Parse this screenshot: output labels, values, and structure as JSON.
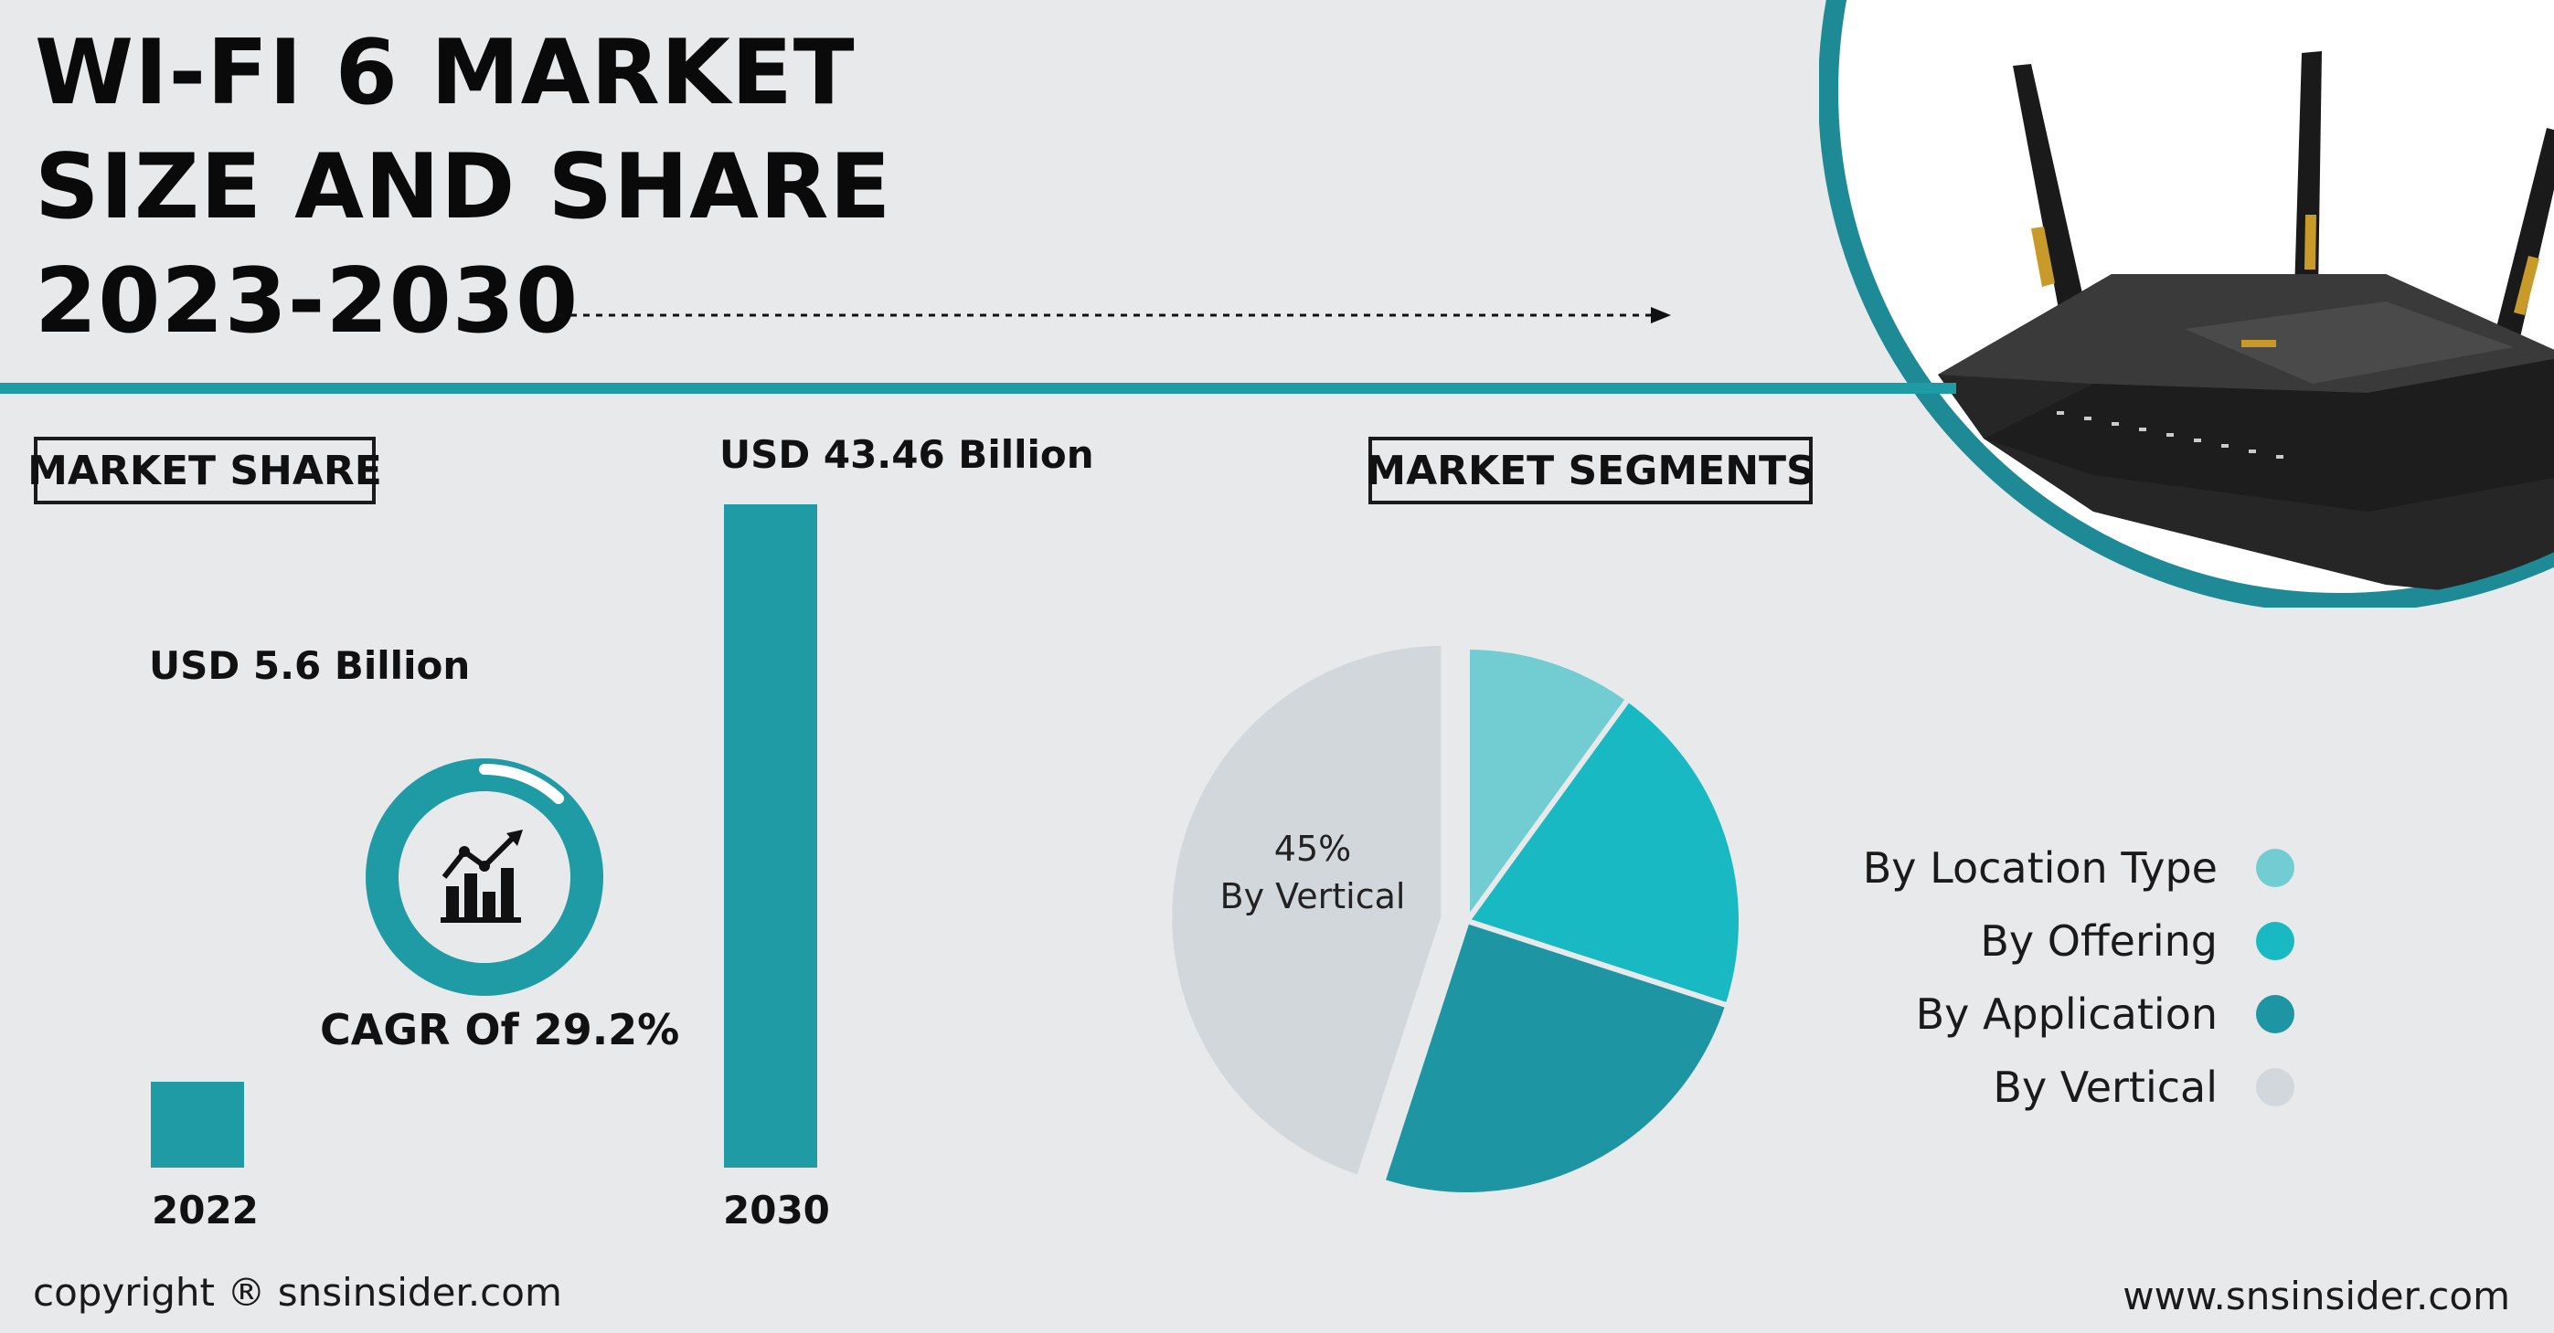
{
  "header": {
    "title_lines": [
      "WI-FI 6 MARKET",
      "SIZE AND SHARE",
      "2023-2030"
    ]
  },
  "sections": {
    "market_share_label": "MARKET SHARE",
    "market_segments_label": "MARKET SEGMENTS"
  },
  "cagr": {
    "text": "CAGR Of 29.2%"
  },
  "footer": {
    "copyright": "copyright ® snsinsider.com",
    "website": "www.snsinsider.com"
  },
  "colors": {
    "accent": "#1e9ba5",
    "background": "#e8e9eb",
    "location_type": "#72cdd3",
    "offering": "#19b9c3",
    "application": "#1e95a3",
    "vertical": "#d2d7db"
  },
  "icons": {
    "cagr": "growth-chart-icon",
    "router": "wifi-router-image"
  },
  "chart_data": [
    {
      "type": "bar",
      "categories": [
        "2022",
        "2030"
      ],
      "values": [
        5.6,
        43.46
      ],
      "data_labels": [
        "USD 5.6 Billion",
        "USD 43.46 Billion"
      ],
      "units": "USD Billion"
    },
    {
      "type": "pie",
      "series": [
        {
          "name": "By Location Type",
          "value": 10,
          "color": "#72cdd3"
        },
        {
          "name": "By Offering",
          "value": 20,
          "color": "#19b9c3"
        },
        {
          "name": "By Application",
          "value": 25,
          "color": "#1e95a3"
        },
        {
          "name": "By Vertical",
          "value": 45,
          "color": "#d2d7db",
          "label": "45%",
          "label_name": "By Vertical"
        }
      ],
      "exploded": [
        "By Vertical"
      ],
      "legend": "right"
    }
  ]
}
